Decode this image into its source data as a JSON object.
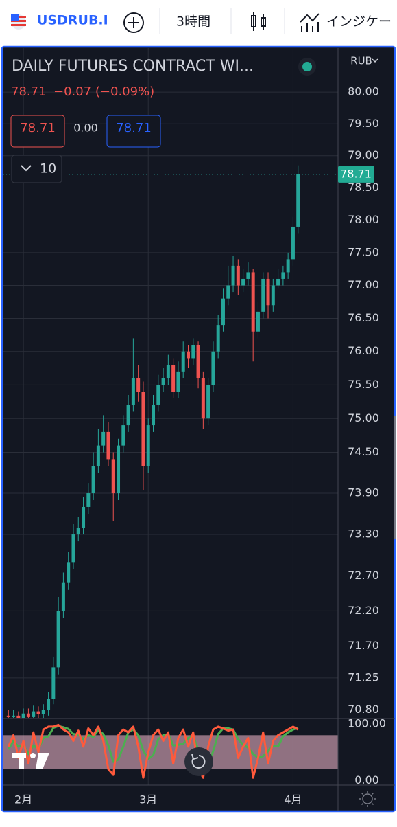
{
  "toolbar": {
    "symbol": "USDRUB.I",
    "interval": "3時間",
    "indicators": "インジケー"
  },
  "chart_data": {
    "type": "candlestick",
    "title": "DAILY FUTURES CONTRACT WI...",
    "currency": "RUB",
    "last_price": "78.71",
    "change": "−0.07 (−0.09%)",
    "bid": "78.71",
    "spread": "0.00",
    "ask": "78.71",
    "collapsed_count": "10",
    "log_scale": true,
    "grid": true,
    "xlim": [
      -1,
      66
    ],
    "ylim": [
      70.68,
      80.7
    ],
    "yticks": [
      {
        "value": 80,
        "label": "80.00"
      },
      {
        "value": 79.5,
        "label": "79.50"
      },
      {
        "value": 79,
        "label": "79.00"
      },
      {
        "value": 78.5,
        "label": "78.50"
      },
      {
        "value": 78,
        "label": "78.00"
      },
      {
        "value": 77.5,
        "label": "77.50"
      },
      {
        "value": 77,
        "label": "77.00"
      },
      {
        "value": 76.5,
        "label": "76.50"
      },
      {
        "value": 76,
        "label": "76.00"
      },
      {
        "value": 75.5,
        "label": "75.50"
      },
      {
        "value": 75,
        "label": "75.00"
      },
      {
        "value": 74.5,
        "label": "74.50"
      },
      {
        "value": 73.9,
        "label": "73.90"
      },
      {
        "value": 73.3,
        "label": "73.30"
      },
      {
        "value": 72.7,
        "label": "72.70"
      },
      {
        "value": 72.2,
        "label": "72.20"
      },
      {
        "value": 71.7,
        "label": "71.70"
      },
      {
        "value": 71.25,
        "label": "71.25"
      },
      {
        "value": 70.8,
        "label": "70.80"
      }
    ],
    "xticks": [
      {
        "value": 3,
        "label": "2月"
      },
      {
        "value": 28,
        "label": "3月"
      },
      {
        "value": 57,
        "label": "4月"
      }
    ],
    "up_color": "#26a69a",
    "down_color": "#ef5350",
    "open": [
      70.72,
      70.7,
      70.72,
      70.68,
      70.75,
      70.7,
      70.78,
      70.74,
      70.8,
      70.95,
      71.4,
      72.2,
      72.6,
      72.9,
      73.3,
      73.4,
      73.7,
      73.9,
      74.3,
      74.6,
      74.8,
      74.4,
      73.9,
      74.6,
      74.9,
      75.2,
      75.6,
      75.4,
      74.3,
      74.9,
      75.2,
      75.5,
      75.6,
      75.8,
      75.4,
      75.7,
      76.0,
      75.9,
      76.1,
      75.6,
      75.0,
      75.5,
      76.0,
      76.4,
      76.8,
      77.0,
      77.3,
      77.0,
      77.1,
      77.2,
      76.3,
      76.6,
      77.1,
      76.7,
      77.0,
      77.1,
      77.2,
      77.4,
      77.9
    ],
    "high": [
      70.8,
      70.8,
      70.78,
      70.82,
      70.82,
      70.86,
      70.85,
      70.88,
      71.05,
      71.55,
      72.4,
      72.75,
      73.05,
      73.45,
      73.55,
      73.85,
      74.05,
      74.5,
      74.85,
      75.05,
      74.95,
      74.5,
      74.7,
      75.05,
      75.35,
      76.2,
      75.8,
      75.55,
      75.0,
      75.35,
      75.65,
      75.75,
      75.95,
      75.9,
      75.85,
      76.15,
      76.1,
      76.2,
      76.15,
      75.7,
      75.6,
      76.15,
      76.55,
      76.95,
      77.3,
      77.45,
      77.4,
      77.25,
      77.35,
      77.25,
      76.75,
      77.2,
      77.2,
      77.1,
      77.25,
      77.3,
      77.5,
      78.05,
      78.85
    ],
    "low": [
      70.6,
      70.62,
      70.58,
      70.6,
      70.62,
      70.62,
      70.65,
      70.66,
      70.72,
      70.88,
      71.3,
      72.1,
      72.5,
      72.8,
      73.2,
      73.3,
      73.6,
      73.8,
      74.2,
      74.5,
      74.3,
      73.5,
      73.8,
      74.5,
      74.8,
      75.1,
      75.25,
      73.95,
      74.2,
      74.8,
      75.1,
      75.4,
      75.5,
      75.3,
      75.3,
      75.6,
      75.75,
      75.8,
      75.45,
      74.85,
      74.9,
      75.4,
      75.9,
      76.3,
      76.7,
      76.9,
      76.85,
      76.9,
      77.0,
      75.85,
      76.2,
      76.5,
      76.5,
      76.6,
      76.95,
      77.0,
      77.1,
      77.3,
      77.8
    ],
    "close": [
      70.7,
      70.72,
      70.68,
      70.75,
      70.7,
      70.78,
      70.74,
      70.8,
      70.95,
      71.4,
      72.2,
      72.6,
      72.9,
      73.3,
      73.4,
      73.7,
      73.9,
      74.3,
      74.6,
      74.8,
      74.4,
      73.9,
      74.6,
      74.9,
      75.2,
      75.6,
      75.4,
      74.3,
      74.9,
      75.2,
      75.5,
      75.6,
      75.8,
      75.4,
      75.7,
      76.0,
      75.9,
      76.1,
      75.6,
      75.0,
      75.5,
      76.0,
      76.4,
      76.8,
      77.0,
      77.3,
      77.0,
      77.1,
      77.2,
      76.3,
      76.6,
      77.1,
      76.7,
      77.0,
      77.1,
      77.2,
      77.4,
      77.9,
      78.71
    ],
    "oscillator": {
      "type": "line",
      "ylim": [
        -8,
        107
      ],
      "band": [
        20,
        80
      ],
      "yticks": [
        {
          "value": 100,
          "label": "100.00"
        },
        {
          "value": 0,
          "label": "0.00"
        }
      ],
      "series": [
        {
          "color": "#4caf50",
          "values": [
            55,
            70,
            60,
            63,
            47,
            62,
            55,
            75,
            78,
            93,
            96,
            94,
            91,
            82,
            81,
            73,
            80,
            77,
            89,
            82,
            62,
            33,
            37,
            60,
            85,
            90,
            80,
            53,
            38,
            45,
            73,
            80,
            82,
            62,
            63,
            65,
            75,
            78,
            55,
            37,
            28,
            52,
            82,
            92,
            92,
            90,
            73,
            63,
            58,
            47,
            40,
            43,
            52,
            62,
            60,
            78,
            85,
            90,
            93
          ]
        },
        {
          "color": "#ff5a3c",
          "values": [
            60,
            80,
            40,
            70,
            30,
            85,
            50,
            90,
            95,
            95,
            98,
            90,
            85,
            70,
            88,
            60,
            92,
            80,
            95,
            70,
            20,
            10,
            80,
            90,
            85,
            95,
            60,
            5,
            50,
            80,
            90,
            70,
            85,
            30,
            75,
            90,
            60,
            85,
            20,
            5,
            60,
            90,
            95,
            92,
            88,
            90,
            40,
            60,
            75,
            5,
            40,
            85,
            30,
            70,
            80,
            85,
            90,
            95,
            90
          ]
        }
      ]
    }
  }
}
